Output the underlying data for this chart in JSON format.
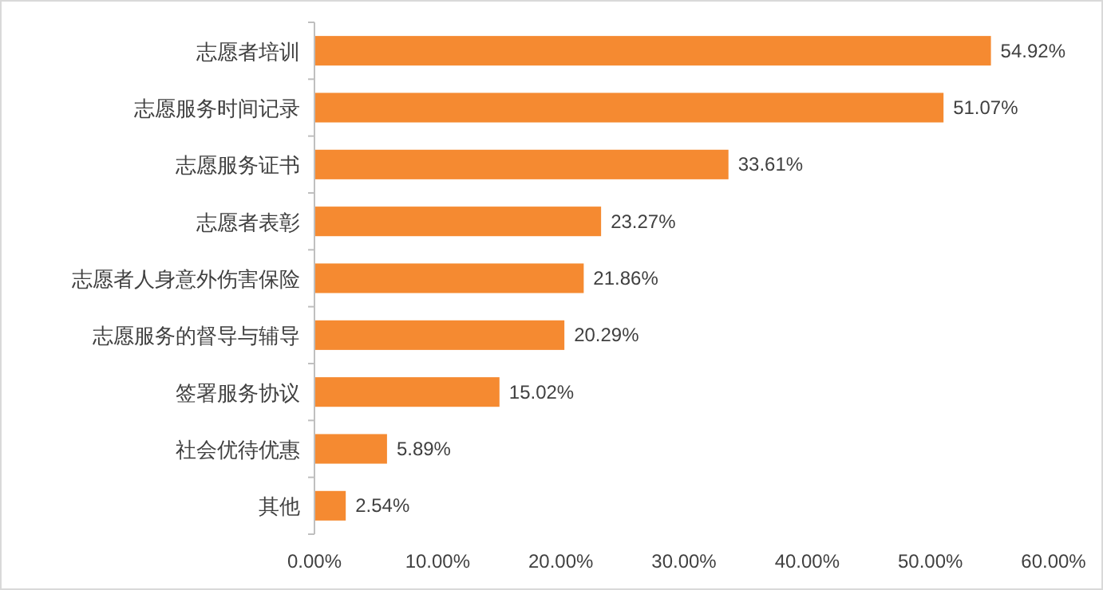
{
  "chart_data": {
    "type": "bar",
    "orientation": "horizontal",
    "categories": [
      "志愿者培训",
      "志愿服务时间记录",
      "志愿服务证书",
      "志愿者表彰",
      "志愿者人身意外伤害保险",
      "志愿服务的督导与辅导",
      "签署服务协议",
      "社会优待优惠",
      "其他"
    ],
    "values": [
      54.92,
      51.07,
      33.61,
      23.27,
      21.86,
      20.29,
      15.02,
      5.89,
      2.54
    ],
    "value_labels": [
      "54.92%",
      "51.07%",
      "33.61%",
      "23.27%",
      "21.86%",
      "20.29%",
      "15.02%",
      "5.89%",
      "2.54%"
    ],
    "color": "#f58a31",
    "xlim": [
      0,
      60
    ],
    "xticks": [
      {
        "value": 0,
        "label": "0.00%"
      },
      {
        "value": 10,
        "label": "10.00%"
      },
      {
        "value": 20,
        "label": "20.00%"
      },
      {
        "value": 30,
        "label": "30.00%"
      },
      {
        "value": 40,
        "label": "40.00%"
      },
      {
        "value": 50,
        "label": "50.00%"
      },
      {
        "value": 60,
        "label": "60.00%"
      }
    ]
  }
}
